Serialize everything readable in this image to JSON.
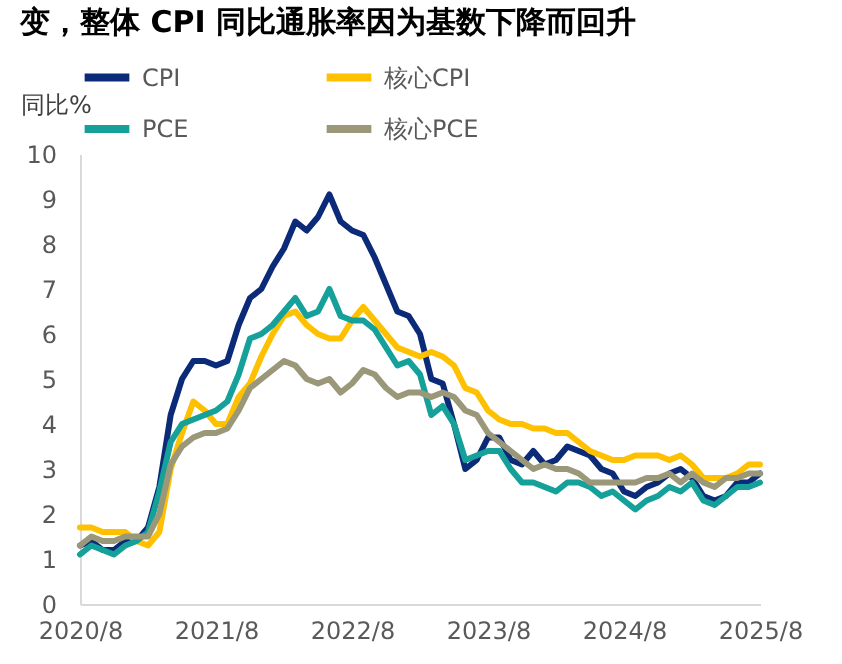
{
  "chart_data": {
    "type": "line",
    "title": "变，整体 CPI 同比通胀率因为基数下降而回升",
    "ylabel": "同比%",
    "categories": [
      "2020/8",
      null,
      null,
      null,
      null,
      null,
      null,
      null,
      null,
      null,
      null,
      null,
      "2021/8",
      null,
      null,
      null,
      null,
      null,
      null,
      null,
      null,
      null,
      null,
      null,
      "2022/8",
      null,
      null,
      null,
      null,
      null,
      null,
      null,
      null,
      null,
      null,
      null,
      "2023/8",
      null,
      null,
      null,
      null,
      null,
      null,
      null,
      null,
      null,
      null,
      null,
      "2024/8",
      null,
      null,
      null,
      null,
      null,
      null,
      null,
      null,
      null,
      null,
      null,
      "2025/8"
    ],
    "series": [
      {
        "name": "CPI",
        "color": "#0b2a78",
        "values": [
          1.3,
          1.4,
          1.2,
          1.2,
          1.4,
          1.4,
          1.7,
          2.6,
          4.2,
          5.0,
          5.4,
          5.4,
          5.3,
          5.4,
          6.2,
          6.8,
          7.0,
          7.5,
          7.9,
          8.5,
          8.3,
          8.6,
          9.1,
          8.5,
          8.3,
          8.2,
          7.7,
          7.1,
          6.5,
          6.4,
          6.0,
          5.0,
          4.9,
          4.0,
          3.0,
          3.2,
          3.7,
          3.7,
          3.2,
          3.1,
          3.4,
          3.1,
          3.2,
          3.5,
          3.4,
          3.3,
          3.0,
          2.9,
          2.5,
          2.4,
          2.6,
          2.7,
          2.9,
          3.0,
          2.8,
          2.4,
          2.3,
          2.4,
          2.7,
          2.7,
          2.9
        ]
      },
      {
        "name": "核心CPI",
        "color": "#ffc000",
        "values": [
          1.7,
          1.7,
          1.6,
          1.6,
          1.6,
          1.4,
          1.3,
          1.6,
          3.0,
          3.8,
          4.5,
          4.3,
          4.0,
          4.0,
          4.6,
          4.9,
          5.5,
          6.0,
          6.4,
          6.5,
          6.2,
          6.0,
          5.9,
          5.9,
          6.3,
          6.6,
          6.3,
          6.0,
          5.7,
          5.6,
          5.5,
          5.6,
          5.5,
          5.3,
          4.8,
          4.7,
          4.3,
          4.1,
          4.0,
          4.0,
          3.9,
          3.9,
          3.8,
          3.8,
          3.6,
          3.4,
          3.3,
          3.2,
          3.2,
          3.3,
          3.3,
          3.3,
          3.2,
          3.3,
          3.1,
          2.8,
          2.8,
          2.8,
          2.9,
          3.1,
          3.1
        ]
      },
      {
        "name": "PCE",
        "color": "#15a09a",
        "values": [
          1.1,
          1.3,
          1.2,
          1.1,
          1.3,
          1.4,
          1.6,
          2.5,
          3.6,
          4.0,
          4.1,
          4.2,
          4.3,
          4.5,
          5.1,
          5.9,
          6.0,
          6.2,
          6.5,
          6.8,
          6.4,
          6.5,
          7.0,
          6.4,
          6.3,
          6.3,
          6.1,
          5.7,
          5.3,
          5.4,
          5.1,
          4.2,
          4.4,
          4.0,
          3.2,
          3.3,
          3.4,
          3.4,
          3.0,
          2.7,
          2.7,
          2.6,
          2.5,
          2.7,
          2.7,
          2.6,
          2.4,
          2.5,
          2.3,
          2.1,
          2.3,
          2.4,
          2.6,
          2.5,
          2.7,
          2.3,
          2.2,
          2.4,
          2.6,
          2.6,
          2.7
        ]
      },
      {
        "name": "核心PCE",
        "color": "#9a9878",
        "values": [
          1.3,
          1.5,
          1.4,
          1.4,
          1.5,
          1.5,
          1.5,
          2.0,
          3.1,
          3.5,
          3.7,
          3.8,
          3.8,
          3.9,
          4.3,
          4.8,
          5.0,
          5.2,
          5.4,
          5.3,
          5.0,
          4.9,
          5.0,
          4.7,
          4.9,
          5.2,
          5.1,
          4.8,
          4.6,
          4.7,
          4.7,
          4.6,
          4.7,
          4.6,
          4.3,
          4.2,
          3.8,
          3.6,
          3.4,
          3.2,
          3.0,
          3.1,
          3.0,
          3.0,
          2.9,
          2.7,
          2.7,
          2.7,
          2.7,
          2.7,
          2.8,
          2.8,
          2.9,
          2.7,
          2.9,
          2.7,
          2.6,
          2.8,
          2.8,
          2.9,
          2.9
        ]
      }
    ],
    "ylim": [
      0,
      10
    ],
    "yticks": [
      0,
      1,
      2,
      3,
      4,
      5,
      6,
      7,
      8,
      9,
      10
    ],
    "grid": false,
    "legend": "top",
    "line_style": "solid",
    "marker": "none"
  }
}
